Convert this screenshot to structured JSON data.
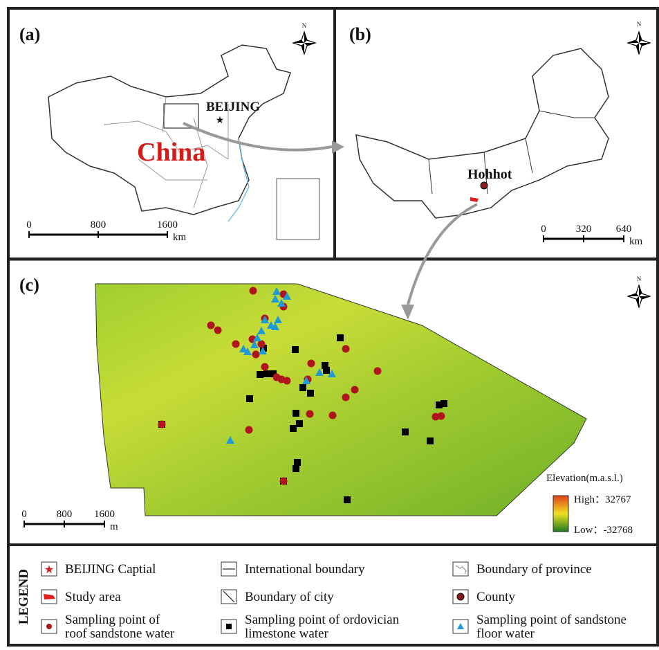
{
  "panels": [
    {
      "label": "(a)",
      "north": "N",
      "place": "BEIJING",
      "country": "China",
      "scale": {
        "ticks": [
          0,
          800,
          1600
        ],
        "unit": "km"
      }
    },
    {
      "label": "(b)",
      "north": "N",
      "place": "Hohhot",
      "scale": {
        "ticks": [
          0,
          320,
          640
        ],
        "unit": "km"
      }
    },
    {
      "label": "(c)",
      "north": "N",
      "scale": {
        "ticks": [
          0,
          800,
          1600
        ],
        "unit": "m"
      },
      "elevation": {
        "title": "Elevation(m.a.s.l.)",
        "high": "High：32767",
        "low": "Low：-32768"
      }
    }
  ],
  "legend": {
    "title": "LEGEND",
    "items": [
      {
        "lines": [
          "BEIJING Captial"
        ]
      },
      {
        "lines": [
          "International boundary"
        ]
      },
      {
        "lines": [
          "Boundary of province"
        ]
      },
      {
        "lines": [
          "Study area"
        ]
      },
      {
        "lines": [
          "Boundary of city"
        ]
      },
      {
        "lines": [
          "County"
        ]
      },
      {
        "lines": [
          "Sampling point of",
          "roof sandstone water"
        ]
      },
      {
        "lines": [
          "Sampling point of ordovician",
          "limestone water"
        ]
      },
      {
        "lines": [
          "Sampling point of sandstone",
          "floor water"
        ]
      }
    ]
  }
}
